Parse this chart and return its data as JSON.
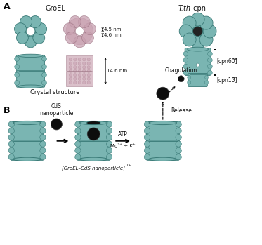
{
  "bg_color": "#ffffff",
  "panel_A_label": "A",
  "panel_B_label": "B",
  "groel_label": "GroEL",
  "tth_label_italic": "T.th",
  "tth_label_normal": " cpn",
  "crystal_label": "Crystal structure",
  "dim1": "4.5 nm",
  "dim2": "4.6 nm",
  "dim3": "14.6 nm",
  "cpn60_label": "[cpn60]",
  "cpn60_sub": "14",
  "cpn10_label": "[cpn10]",
  "cpn10_sub": "7",
  "cds_label": "CdS\nnanoparticle",
  "complex_label": "[GroEL–CdS nanoparticle]",
  "complex_sub": "nc",
  "atp_line1": "ATP",
  "atp_line2": "Mg²⁺ + K⁺",
  "release_label": "Release",
  "coagulation_label": "Coagulation",
  "teal_color": "#7ab5b2",
  "teal_dark": "#3a7a77",
  "teal_mid": "#5a9a97",
  "pink_crystal": "#c8a0b0",
  "pink_dark": "#9a7080",
  "black": "#000000",
  "text_color": "#111111"
}
